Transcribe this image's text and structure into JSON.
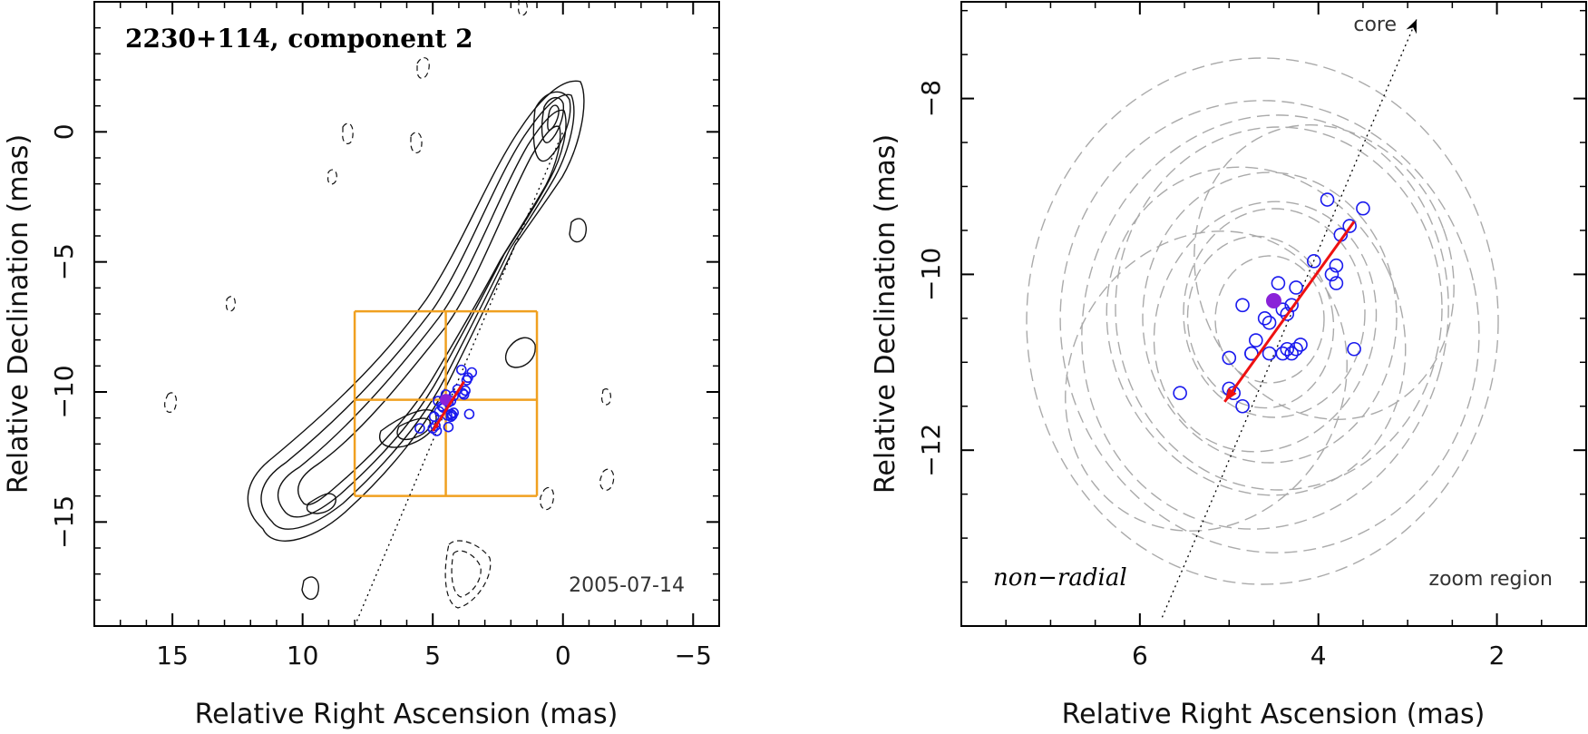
{
  "chart_data": [
    {
      "type": "scatter",
      "panel": "left",
      "title": "2230+114, component 2",
      "xlabel": "Relative Right Ascension (mas)",
      "ylabel": "Relative Declination (mas)",
      "xlim": [
        18,
        -6
      ],
      "ylim": [
        -19,
        5
      ],
      "x_ticks": [
        15,
        10,
        5,
        0,
        -5
      ],
      "x_tick_labels": [
        "15",
        "10",
        "5",
        "0",
        "−5"
      ],
      "y_ticks": [
        0,
        -5,
        -10,
        -15
      ],
      "y_tick_labels": [
        "0",
        "−5",
        "−10",
        "−15"
      ],
      "date_label": "2005-07-14",
      "zoom_box": {
        "ra_range": [
          8,
          1
        ],
        "dec_range": [
          -14,
          -6.9
        ],
        "crosshair": [
          4.5,
          -10.3
        ]
      },
      "core_direction_line": {
        "from": [
          8,
          -19
        ],
        "to": [
          0,
          0
        ]
      },
      "motion_vector": {
        "from": [
          3.8,
          -9.6
        ],
        "to": [
          5.0,
          -11.5
        ],
        "color": "#ee1111"
      },
      "series": [
        {
          "name": "component positions",
          "marker": "open-circle",
          "color": "#1a1aee",
          "points": [
            [
              5.5,
              -11.4
            ],
            [
              5.0,
              -11.4
            ],
            [
              4.9,
              -11.3
            ],
            [
              4.85,
              -11.5
            ],
            [
              4.95,
              -10.95
            ],
            [
              4.75,
              -10.75
            ],
            [
              4.65,
              -10.55
            ],
            [
              4.6,
              -10.6
            ],
            [
              4.4,
              -10.4
            ],
            [
              4.8,
              -10.35
            ],
            [
              4.5,
              -10.1
            ],
            [
              4.3,
              -10.35
            ],
            [
              4.2,
              -10.15
            ],
            [
              4.05,
              -9.9
            ],
            [
              3.85,
              -10.05
            ],
            [
              3.8,
              -10.1
            ],
            [
              3.75,
              -9.95
            ],
            [
              3.7,
              -9.55
            ],
            [
              3.65,
              -9.45
            ],
            [
              3.5,
              -9.25
            ],
            [
              3.9,
              -9.15
            ],
            [
              4.3,
              -10.85
            ],
            [
              4.25,
              -10.9
            ],
            [
              4.3,
              -10.95
            ],
            [
              4.2,
              -10.8
            ],
            [
              4.45,
              -10.9
            ],
            [
              4.4,
              -11.35
            ],
            [
              3.6,
              -10.85
            ]
          ]
        },
        {
          "name": "mean position",
          "marker": "filled-circle",
          "color": "#8a22d8",
          "points": [
            [
              4.5,
              -10.3
            ]
          ]
        }
      ]
    },
    {
      "type": "scatter",
      "panel": "right",
      "title": "",
      "xlabel": "Relative Right Ascension (mas)",
      "ylabel": "Relative Declination (mas)",
      "xlim": [
        8,
        1
      ],
      "ylim": [
        -14,
        -6.9
      ],
      "x_ticks": [
        6,
        4,
        2
      ],
      "x_tick_labels": [
        "6",
        "4",
        "2"
      ],
      "y_ticks": [
        -8,
        -10,
        -12
      ],
      "y_tick_labels": [
        "−8",
        "−10",
        "−12"
      ],
      "annotations": {
        "core": "core",
        "non_radial": "non−radial",
        "zoom_region": "zoom region"
      },
      "core_direction_line": {
        "from": [
          5.75,
          -13.9
        ],
        "to": [
          2.9,
          -7.1
        ]
      },
      "motion_vector": {
        "from": [
          3.6,
          -9.4
        ],
        "to": [
          5.05,
          -11.45
        ],
        "color": "#ee1111"
      },
      "series": [
        {
          "name": "component positions",
          "marker": "open-circle",
          "color": "#1a1aee",
          "points": [
            [
              5.55,
              -11.35
            ],
            [
              5.0,
              -11.3
            ],
            [
              4.95,
              -11.35
            ],
            [
              4.85,
              -11.5
            ],
            [
              5.0,
              -10.95
            ],
            [
              4.75,
              -10.9
            ],
            [
              4.7,
              -10.75
            ],
            [
              4.6,
              -10.5
            ],
            [
              4.55,
              -10.55
            ],
            [
              4.85,
              -10.35
            ],
            [
              4.4,
              -10.4
            ],
            [
              4.35,
              -10.45
            ],
            [
              4.3,
              -10.35
            ],
            [
              4.45,
              -10.1
            ],
            [
              4.25,
              -10.15
            ],
            [
              4.05,
              -9.85
            ],
            [
              3.85,
              -10.0
            ],
            [
              3.8,
              -10.1
            ],
            [
              3.8,
              -9.9
            ],
            [
              3.75,
              -9.55
            ],
            [
              3.65,
              -9.45
            ],
            [
              3.9,
              -9.15
            ],
            [
              3.5,
              -9.25
            ],
            [
              4.35,
              -10.85
            ],
            [
              4.3,
              -10.9
            ],
            [
              4.25,
              -10.85
            ],
            [
              4.2,
              -10.8
            ],
            [
              4.55,
              -10.9
            ],
            [
              4.75,
              -10.9
            ],
            [
              3.6,
              -10.85
            ],
            [
              4.4,
              -10.9
            ]
          ]
        },
        {
          "name": "mean position",
          "marker": "filled-circle",
          "color": "#8a22d8",
          "points": [
            [
              4.5,
              -10.3
            ]
          ]
        }
      ]
    }
  ]
}
